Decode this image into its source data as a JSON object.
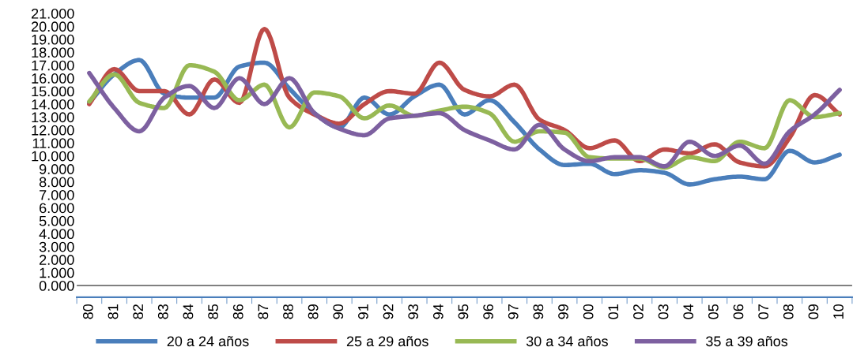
{
  "chart_data": {
    "type": "line",
    "categories": [
      "80",
      "81",
      "82",
      "83",
      "84",
      "85",
      "86",
      "87",
      "88",
      "89",
      "90",
      "91",
      "92",
      "93",
      "94",
      "95",
      "96",
      "97",
      "98",
      "99",
      "00",
      "01",
      "02",
      "03",
      "04",
      "05",
      "06",
      "07",
      "08",
      "09",
      "10"
    ],
    "series": [
      {
        "name": "20 a 24 años",
        "color": "#4a7ebb",
        "values": [
          14.1,
          16.3,
          17.4,
          14.8,
          14.5,
          14.5,
          16.9,
          17.2,
          15.2,
          13.3,
          12.2,
          14.5,
          13.2,
          14.6,
          15.5,
          13.2,
          14.3,
          12.6,
          10.5,
          9.3,
          9.4,
          8.6,
          8.9,
          8.7,
          7.8,
          8.2,
          8.4,
          8.2,
          10.4,
          9.5,
          10.1
        ]
      },
      {
        "name": "25 a 29 años",
        "color": "#be4b48",
        "values": [
          14.0,
          16.7,
          15.0,
          15.0,
          13.2,
          15.9,
          14.1,
          19.8,
          14.5,
          13.2,
          12.5,
          14.0,
          15.0,
          14.8,
          17.2,
          15.1,
          14.6,
          15.5,
          12.8,
          12.0,
          10.6,
          11.2,
          9.6,
          10.5,
          10.2,
          10.9,
          9.5,
          9.2,
          11.4,
          14.7,
          13.2
        ]
      },
      {
        "name": "30 a 34 años",
        "color": "#98b954",
        "values": [
          14.2,
          16.3,
          14.1,
          13.7,
          17.0,
          16.5,
          14.3,
          15.5,
          12.2,
          14.9,
          14.6,
          12.9,
          13.9,
          13.1,
          13.5,
          13.8,
          13.3,
          11.1,
          11.9,
          11.8,
          9.9,
          9.8,
          9.8,
          9.1,
          9.9,
          9.6,
          11.1,
          10.6,
          14.3,
          13.0,
          13.3
        ]
      },
      {
        "name": "35 a 39 años",
        "color": "#7d60a0",
        "values": [
          16.4,
          13.7,
          11.9,
          14.5,
          15.4,
          13.7,
          16.0,
          14.0,
          16.0,
          13.3,
          12.1,
          11.6,
          12.9,
          13.1,
          13.3,
          12.0,
          11.2,
          10.5,
          12.4,
          10.5,
          9.6,
          9.9,
          9.9,
          9.2,
          11.1,
          10.0,
          10.8,
          9.4,
          11.9,
          13.2,
          15.1
        ]
      }
    ],
    "ylim": [
      -0.9,
      21
    ],
    "yticks": [
      {
        "value": 0,
        "label": "0.000"
      },
      {
        "value": 1,
        "label": "1.000"
      },
      {
        "value": 2,
        "label": "2.000"
      },
      {
        "value": 3,
        "label": "3.000"
      },
      {
        "value": 4,
        "label": "4.000"
      },
      {
        "value": 5,
        "label": "5.000"
      },
      {
        "value": 6,
        "label": "6.000"
      },
      {
        "value": 7,
        "label": "7.000"
      },
      {
        "value": 8,
        "label": "8.000"
      },
      {
        "value": 9,
        "label": "9.000"
      },
      {
        "value": 10,
        "label": "10.000"
      },
      {
        "value": 11,
        "label": "11.000"
      },
      {
        "value": 12,
        "label": "12.000"
      },
      {
        "value": 13,
        "label": "13.000"
      },
      {
        "value": 14,
        "label": "14.000"
      },
      {
        "value": 15,
        "label": "15.000"
      },
      {
        "value": 16,
        "label": "16.000"
      },
      {
        "value": 17,
        "label": "17.000"
      },
      {
        "value": 18,
        "label": "18.000"
      },
      {
        "value": 19,
        "label": "19.000"
      },
      {
        "value": 20,
        "label": "20.000"
      },
      {
        "value": 21,
        "label": "21.000"
      }
    ],
    "ref_lines": [
      {
        "axis": "y",
        "value": 0,
        "color": "#808080"
      }
    ],
    "grid": false,
    "legend": "bottom",
    "marker": "none",
    "line_style": "solid"
  }
}
